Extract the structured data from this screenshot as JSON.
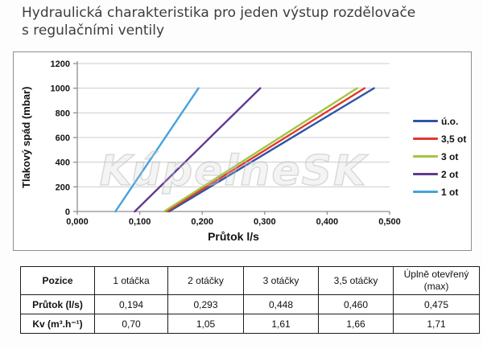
{
  "title": "Hydraulická charakteristika pro jeden výstup rozdělovače\ns regulačními ventily",
  "chart_data": {
    "type": "line",
    "title": "",
    "xlabel": "Průtok l/s",
    "ylabel": "Tlakový spád (mbar)",
    "watermark": "KúpelneSK",
    "xlim": [
      0,
      0.5
    ],
    "ylim": [
      0,
      1200
    ],
    "xticks": [
      0,
      0.1,
      0.2,
      0.3,
      0.4,
      0.5
    ],
    "xtick_labels": [
      "0,000",
      "0,100",
      "0,200",
      "0,300",
      "0,400",
      "0,500"
    ],
    "yticks": [
      0,
      200,
      400,
      600,
      800,
      1000,
      1200
    ],
    "grid": "horizontal",
    "legend_position": "right",
    "axis_color": "#8f8f8f",
    "gridline_color": "#cccccc",
    "series": [
      {
        "name": "ú.o.",
        "color": "#2e56a8",
        "points": [
          [
            0.147,
            0
          ],
          [
            0.475,
            1000
          ]
        ]
      },
      {
        "name": "3,5 ot",
        "color": "#e2382c",
        "points": [
          [
            0.143,
            0
          ],
          [
            0.46,
            1000
          ]
        ]
      },
      {
        "name": "3 ot",
        "color": "#a2c63f",
        "points": [
          [
            0.139,
            0
          ],
          [
            0.448,
            1000
          ]
        ]
      },
      {
        "name": "2 ot",
        "color": "#5e3a90",
        "points": [
          [
            0.092,
            0
          ],
          [
            0.293,
            1000
          ]
        ]
      },
      {
        "name": "1 ot",
        "color": "#43a4dc",
        "points": [
          [
            0.061,
            0
          ],
          [
            0.194,
            1000
          ]
        ]
      }
    ]
  },
  "table": {
    "headers": [
      "Pozice",
      "1 otáčka",
      "2 otáčky",
      "3 otáčky",
      "3,5 otáčky",
      "Úplně otevřený (max)"
    ],
    "rows": [
      {
        "label": "Průtok (l/s)",
        "values": [
          "0,194",
          "0,293",
          "0,448",
          "0,460",
          "0,475"
        ]
      },
      {
        "label": "Kv (m³.h⁻¹)",
        "values": [
          "0,70",
          "1,05",
          "1,61",
          "1,66",
          "1,71"
        ]
      }
    ]
  }
}
